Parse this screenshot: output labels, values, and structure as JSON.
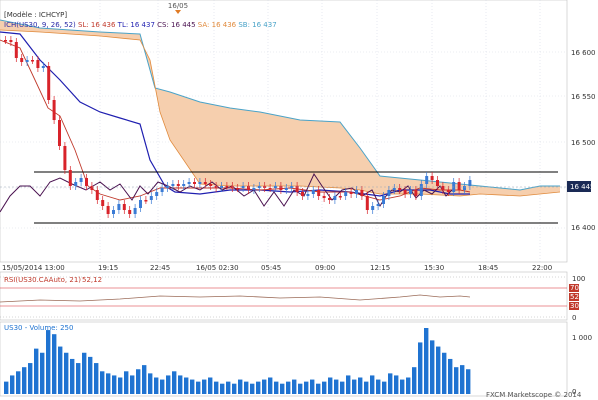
{
  "header": {
    "date_marker": "16/05",
    "modele_label": "[Modèle : ICHCYP]",
    "legend": [
      {
        "text": "ICH(US30, 9, 26, 52)",
        "color": "#2a2aa8"
      },
      {
        "text": "SL: 16 436",
        "color": "#c0392b"
      },
      {
        "text": "TL: 16 437",
        "color": "#1f1fb0"
      },
      {
        "text": "CS: 16 445",
        "color": "#4a1250"
      },
      {
        "text": "SA: 16 436",
        "color": "#e08a3c"
      },
      {
        "text": "SB: 16 437",
        "color": "#4aa3c8"
      }
    ]
  },
  "price_axis": {
    "ticks": [
      "16 600",
      "16 550",
      "16 500",
      "16 450",
      "16 400"
    ],
    "current_tag": "16 445"
  },
  "time_axis": {
    "labels": [
      "15/05/2014 13:00",
      "19:15",
      "22:45",
      "16/05 02:30",
      "05:45",
      "09:00",
      "12:15",
      "15:30",
      "18:45",
      "22:00"
    ]
  },
  "rsi": {
    "label": "RSI(US30.CAAuto, 21)",
    "value_label": "52,12",
    "ticks": [
      "100",
      "70",
      "52",
      "30",
      "0"
    ]
  },
  "volume": {
    "label": "US30 - Volume: 250",
    "ticks": [
      "1 000",
      "0"
    ]
  },
  "footer": {
    "brand": "FXCM Marketscope © 2014"
  },
  "colors": {
    "bull": "#3a7bd5",
    "bear": "#d8232a",
    "kumo_fill": "#f6cfae",
    "tenkan": "#c0392b",
    "kijun": "#1f1fb0",
    "chikou": "#4a1250",
    "span_b": "#4aa3c8",
    "volume": "#1f73d1"
  },
  "chart_data": {
    "type": "candlestick",
    "symbol": "US30",
    "price_range": [
      16380,
      16640
    ],
    "support_levels": [
      16462,
      16405
    ],
    "indicators": {
      "tenkan_sen": 16436,
      "kijun_sen": 16437,
      "chikou_span": 16445,
      "senkou_span_a": 16436,
      "senkou_span_b": 16437
    },
    "rsi_period": 21,
    "rsi_last": 52.12,
    "volume_last": 250
  }
}
